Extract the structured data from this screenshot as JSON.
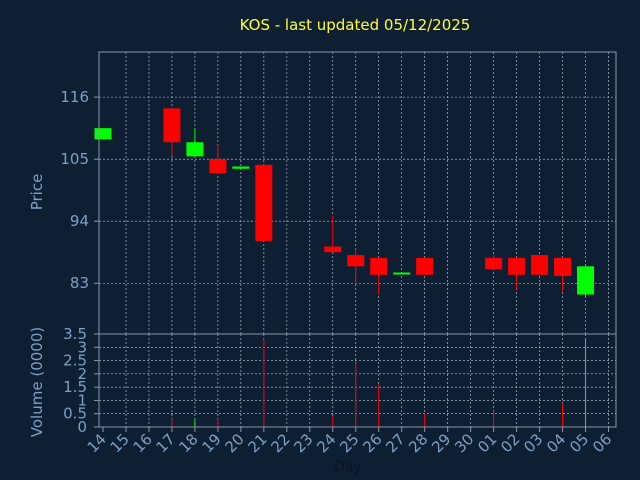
{
  "chart_data": {
    "type": "candlestick",
    "title": "KOS - last updated 05/12/2025",
    "price_panel": {
      "ylabel": "Price",
      "yticks": [
        "116",
        "105",
        "94",
        "83"
      ],
      "ytick_values": [
        116,
        105,
        94,
        83
      ],
      "ylim": [
        74,
        124
      ]
    },
    "volume_panel": {
      "ylabel": "Volume (0000)",
      "yticks": [
        "3.5",
        "3",
        "2.5",
        "2",
        "1.5",
        "1",
        "0.5",
        "0"
      ],
      "ytick_values": [
        3.5,
        3,
        2.5,
        2,
        1.5,
        1,
        0.5,
        0
      ],
      "ylim": [
        0,
        3.5
      ]
    },
    "xlabel": "Day",
    "x_categories": [
      "14",
      "15",
      "16",
      "17",
      "18",
      "19",
      "20",
      "21",
      "22",
      "23",
      "24",
      "25",
      "26",
      "27",
      "28",
      "29",
      "30",
      "01",
      "02",
      "03",
      "04",
      "05",
      "06"
    ],
    "candles": [
      {
        "slot": 0,
        "open": 108.5,
        "close": 110.5,
        "high": 110.5,
        "low": 108.5,
        "color": "#00ff00"
      },
      {
        "slot": 3,
        "open": 114,
        "close": 108,
        "high": 114,
        "low": 105.5,
        "color": "#ff0000"
      },
      {
        "slot": 4,
        "open": 105.5,
        "close": 108,
        "high": 110.5,
        "low": 105.5,
        "color": "#00ff00"
      },
      {
        "slot": 5,
        "open": 105,
        "close": 102.5,
        "high": 107.5,
        "low": 102.5,
        "color": "#ff0000"
      },
      {
        "slot": 6,
        "open": 103.3,
        "close": 103.7,
        "high": 103.7,
        "low": 103.3,
        "color": "#00ff00"
      },
      {
        "slot": 7,
        "open": 104,
        "close": 90.5,
        "high": 104,
        "low": 90.5,
        "color": "#ff0000"
      },
      {
        "slot": 10,
        "open": 89.5,
        "close": 88.5,
        "high": 95,
        "low": 88.5,
        "color": "#ff0000"
      },
      {
        "slot": 11,
        "open": 88,
        "close": 86,
        "high": 89,
        "low": 83,
        "color": "#ff0000"
      },
      {
        "slot": 12,
        "open": 87.5,
        "close": 84.5,
        "high": 87.5,
        "low": 81,
        "color": "#ff0000"
      },
      {
        "slot": 13,
        "open": 84.7,
        "close": 84.9,
        "high": 84.9,
        "low": 84.7,
        "color": "#00ff00"
      },
      {
        "slot": 14,
        "open": 87.5,
        "close": 84.5,
        "high": 87.5,
        "low": 84.5,
        "color": "#ff0000"
      },
      {
        "slot": 17,
        "open": 87.5,
        "close": 85.5,
        "high": 88,
        "low": 85.5,
        "color": "#ff0000"
      },
      {
        "slot": 18,
        "open": 87.5,
        "close": 84.5,
        "high": 87.5,
        "low": 82,
        "color": "#ff0000"
      },
      {
        "slot": 19,
        "open": 88,
        "close": 84.5,
        "high": 88,
        "low": 84.5,
        "color": "#ff0000"
      },
      {
        "slot": 20,
        "open": 87.5,
        "close": 84.3,
        "high": 87.5,
        "low": 81.5,
        "color": "#ff0000"
      },
      {
        "slot": 21,
        "open": 81,
        "close": 86,
        "high": 86,
        "low": 80.5,
        "color": "#00ff00"
      }
    ],
    "volume": [
      {
        "slot": 3,
        "value": 0.3,
        "color": "#ff0000"
      },
      {
        "slot": 4,
        "value": 0.3,
        "color": "#00ff00"
      },
      {
        "slot": 5,
        "value": 0.3,
        "color": "#ff0000"
      },
      {
        "slot": 7,
        "value": 3.3,
        "color": "#ff0000"
      },
      {
        "slot": 10,
        "value": 0.4,
        "color": "#ff0000"
      },
      {
        "slot": 11,
        "value": 2.4,
        "color": "#ff0000"
      },
      {
        "slot": 12,
        "value": 1.6,
        "color": "#ff0000"
      },
      {
        "slot": 14,
        "value": 0.5,
        "color": "#ff0000"
      },
      {
        "slot": 17,
        "value": 0.6,
        "color": "#ff0000"
      },
      {
        "slot": 20,
        "value": 0.9,
        "color": "#ff0000"
      },
      {
        "slot": 21,
        "value": 3.3,
        "color": "#00ff00"
      }
    ],
    "colors": {
      "background": "#0f1f33",
      "up": "#00ff00",
      "down": "#ff0000",
      "title": "#ffff33",
      "labels": "#7f9fc4"
    },
    "grid": true
  }
}
